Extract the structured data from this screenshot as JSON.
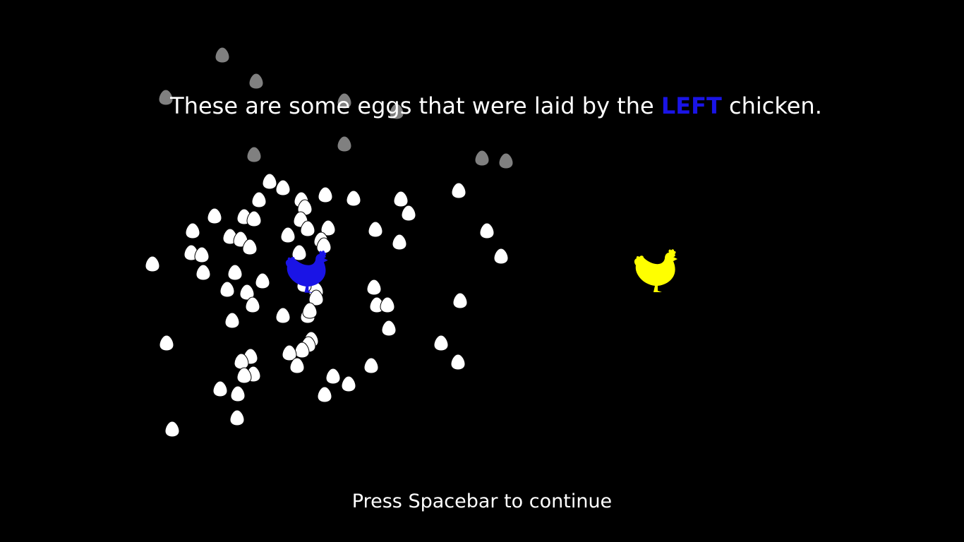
{
  "instruction": {
    "prefix": "These are some eggs that were laid by the ",
    "highlight": "LEFT",
    "suffix": " chicken.",
    "highlight_color": "#1a14e6"
  },
  "prompt": {
    "continue_text": "Press Spacebar to continue"
  },
  "chickens": {
    "left_color": "#1a14e6",
    "right_color": "#ffff00"
  },
  "eggs": {
    "visible_color": "#ffffff",
    "faded_color": "#808080"
  }
}
